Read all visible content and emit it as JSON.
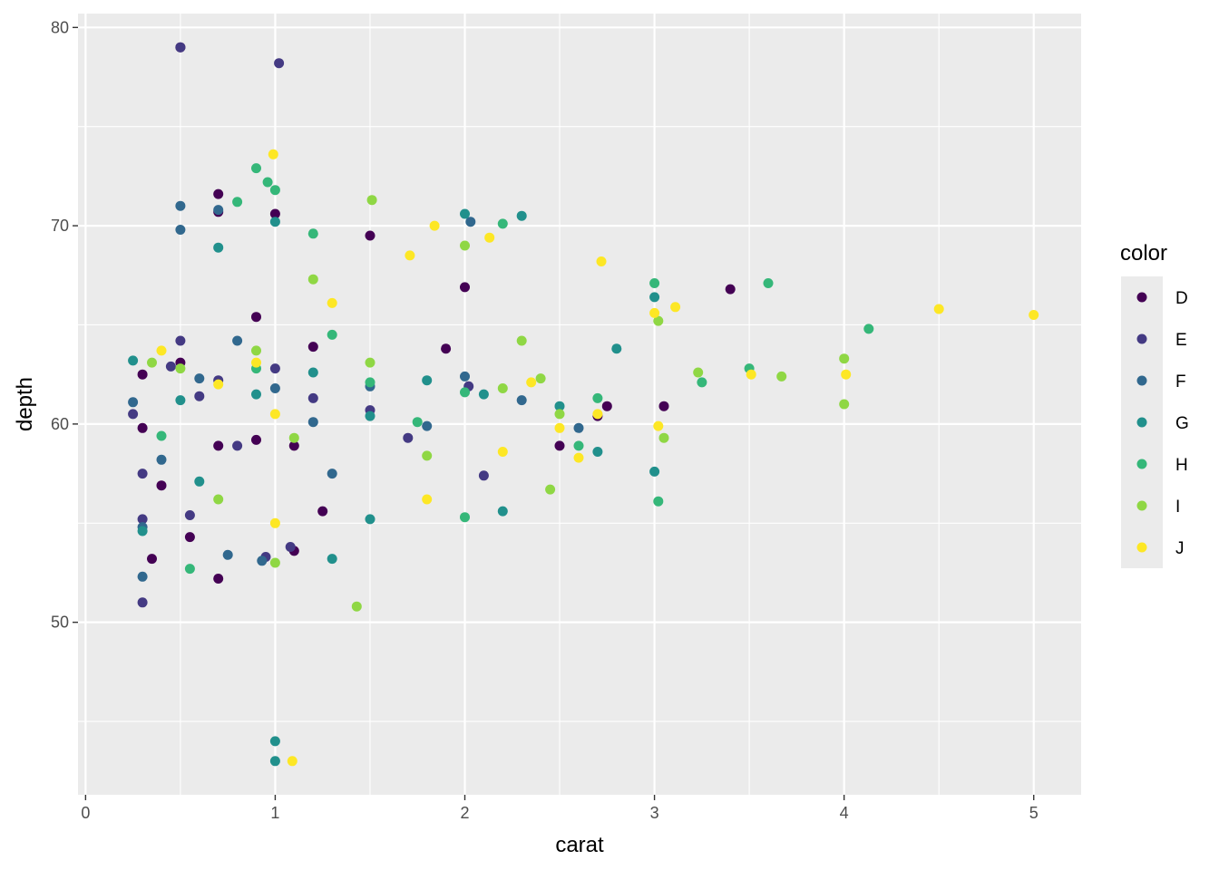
{
  "chart_data": {
    "type": "scatter",
    "title": "",
    "xlabel": "carat",
    "ylabel": "depth",
    "xlim": [
      -0.04,
      5.25
    ],
    "ylim": [
      41.3,
      80.7
    ],
    "x_ticks": [
      0,
      1,
      2,
      3,
      4,
      5
    ],
    "y_ticks": [
      50,
      60,
      70,
      80
    ],
    "grid": true,
    "legend": {
      "title": "color",
      "position": "right",
      "entries": [
        "D",
        "E",
        "F",
        "G",
        "H",
        "I",
        "J"
      ]
    },
    "colors": {
      "D": "#440154",
      "E": "#443A83",
      "F": "#31688E",
      "G": "#21908C",
      "H": "#35B779",
      "I": "#8FD744",
      "J": "#FDE725"
    },
    "panel_background": "#EBEBEB",
    "series": [
      {
        "name": "D",
        "points": [
          [
            0.5,
            79
          ],
          [
            1.0,
            70.6
          ],
          [
            0.7,
            71.6
          ],
          [
            0.7,
            70.7
          ],
          [
            1.5,
            69.5
          ],
          [
            2.0,
            66.9
          ],
          [
            3.4,
            66.8
          ],
          [
            0.9,
            65.4
          ],
          [
            1.2,
            63.9
          ],
          [
            1.9,
            63.8
          ],
          [
            0.5,
            63.1
          ],
          [
            0.3,
            62.5
          ],
          [
            0.3,
            59.8
          ],
          [
            0.7,
            58.9
          ],
          [
            1.1,
            58.9
          ],
          [
            2.5,
            58.9
          ],
          [
            2.7,
            60.4
          ],
          [
            3.05,
            60.9
          ],
          [
            2.75,
            60.9
          ],
          [
            0.35,
            53.2
          ],
          [
            0.55,
            54.3
          ],
          [
            0.7,
            52.2
          ],
          [
            1.1,
            53.6
          ],
          [
            1.25,
            55.6
          ],
          [
            0.4,
            56.9
          ],
          [
            0.9,
            59.2
          ]
        ]
      },
      {
        "name": "E",
        "points": [
          [
            0.5,
            79
          ],
          [
            1.02,
            78.2
          ],
          [
            0.3,
            51
          ],
          [
            0.95,
            53.3
          ],
          [
            1.08,
            53.8
          ],
          [
            0.3,
            55.2
          ],
          [
            0.5,
            64.2
          ],
          [
            0.6,
            61.4
          ],
          [
            0.7,
            62.2
          ],
          [
            1.2,
            61.3
          ],
          [
            1.5,
            60.7
          ],
          [
            2.02,
            61.9
          ],
          [
            0.3,
            57.5
          ],
          [
            0.8,
            58.9
          ],
          [
            0.55,
            55.4
          ],
          [
            2.1,
            57.4
          ],
          [
            1.7,
            59.3
          ],
          [
            0.25,
            60.5
          ],
          [
            0.45,
            62.9
          ],
          [
            1.0,
            62.8
          ]
        ]
      },
      {
        "name": "F",
        "points": [
          [
            0.5,
            71
          ],
          [
            0.5,
            69.8
          ],
          [
            0.7,
            70.8
          ],
          [
            0.3,
            52.3
          ],
          [
            0.3,
            54.8
          ],
          [
            0.75,
            53.4
          ],
          [
            0.93,
            53.1
          ],
          [
            0.25,
            61.1
          ],
          [
            0.6,
            62.3
          ],
          [
            1.0,
            61.8
          ],
          [
            1.2,
            60.1
          ],
          [
            1.5,
            61.9
          ],
          [
            2.0,
            62.4
          ],
          [
            2.3,
            61.2
          ],
          [
            2.6,
            59.8
          ],
          [
            0.4,
            58.2
          ],
          [
            0.8,
            64.2
          ],
          [
            1.3,
            57.5
          ],
          [
            2.03,
            70.2
          ],
          [
            1.8,
            59.9
          ]
        ]
      },
      {
        "name": "G",
        "points": [
          [
            1.0,
            44
          ],
          [
            1.0,
            43
          ],
          [
            0.3,
            54.6
          ],
          [
            0.7,
            68.9
          ],
          [
            1.0,
            70.2
          ],
          [
            2.0,
            70.6
          ],
          [
            2.3,
            70.5
          ],
          [
            1.3,
            53.2
          ],
          [
            0.5,
            61.2
          ],
          [
            0.9,
            61.5
          ],
          [
            1.2,
            62.6
          ],
          [
            1.5,
            60.4
          ],
          [
            2.1,
            61.5
          ],
          [
            2.5,
            60.9
          ],
          [
            2.8,
            63.8
          ],
          [
            2.7,
            58.6
          ],
          [
            2.2,
            55.6
          ],
          [
            1.5,
            55.2
          ],
          [
            0.6,
            57.1
          ],
          [
            1.8,
            62.2
          ],
          [
            0.25,
            63.2
          ],
          [
            3.0,
            66.4
          ],
          [
            3.0,
            57.6
          ]
        ]
      },
      {
        "name": "H",
        "points": [
          [
            0.9,
            72.9
          ],
          [
            0.96,
            72.2
          ],
          [
            1.0,
            71.8
          ],
          [
            0.55,
            52.7
          ],
          [
            0.9,
            62.8
          ],
          [
            1.5,
            62.1
          ],
          [
            2.0,
            61.6
          ],
          [
            2.2,
            70.1
          ],
          [
            3.0,
            67.1
          ],
          [
            3.6,
            67.1
          ],
          [
            3.5,
            62.8
          ],
          [
            3.25,
            62.1
          ],
          [
            4.13,
            64.8
          ],
          [
            2.0,
            55.3
          ],
          [
            3.02,
            56.1
          ],
          [
            1.2,
            69.6
          ],
          [
            0.8,
            71.2
          ],
          [
            2.6,
            58.9
          ],
          [
            1.75,
            60.1
          ],
          [
            0.4,
            59.4
          ],
          [
            1.3,
            64.5
          ],
          [
            2.7,
            61.3
          ]
        ]
      },
      {
        "name": "I",
        "points": [
          [
            1.51,
            71.3
          ],
          [
            1.0,
            53
          ],
          [
            1.43,
            50.8
          ],
          [
            4.0,
            63.3
          ],
          [
            4.0,
            61
          ],
          [
            3.67,
            62.4
          ],
          [
            3.23,
            62.6
          ],
          [
            3.02,
            65.2
          ],
          [
            3.05,
            59.3
          ],
          [
            2.45,
            56.7
          ],
          [
            0.7,
            56.2
          ],
          [
            1.1,
            59.3
          ],
          [
            1.5,
            63.1
          ],
          [
            2.2,
            61.8
          ],
          [
            2.4,
            62.3
          ],
          [
            2.5,
            60.5
          ],
          [
            0.5,
            62.8
          ],
          [
            0.9,
            63.7
          ],
          [
            1.8,
            58.4
          ],
          [
            2.0,
            69
          ],
          [
            2.3,
            64.2
          ],
          [
            1.2,
            67.3
          ],
          [
            0.35,
            63.1
          ]
        ]
      },
      {
        "name": "J",
        "points": [
          [
            0.99,
            73.6
          ],
          [
            1.09,
            43
          ],
          [
            5.0,
            65.5
          ],
          [
            4.5,
            65.8
          ],
          [
            4.01,
            62.5
          ],
          [
            3.51,
            62.5
          ],
          [
            3.11,
            65.9
          ],
          [
            3.02,
            59.9
          ],
          [
            3.0,
            65.6
          ],
          [
            2.72,
            68.2
          ],
          [
            2.13,
            69.4
          ],
          [
            1.84,
            70
          ],
          [
            1.71,
            68.5
          ],
          [
            2.2,
            58.6
          ],
          [
            2.5,
            59.8
          ],
          [
            2.6,
            58.3
          ],
          [
            1.0,
            60.5
          ],
          [
            1.0,
            55
          ],
          [
            0.9,
            63.1
          ],
          [
            0.7,
            62
          ],
          [
            0.4,
            63.7
          ],
          [
            1.8,
            56.2
          ],
          [
            1.3,
            66.1
          ],
          [
            2.35,
            62.1
          ],
          [
            2.7,
            60.5
          ]
        ]
      }
    ]
  }
}
